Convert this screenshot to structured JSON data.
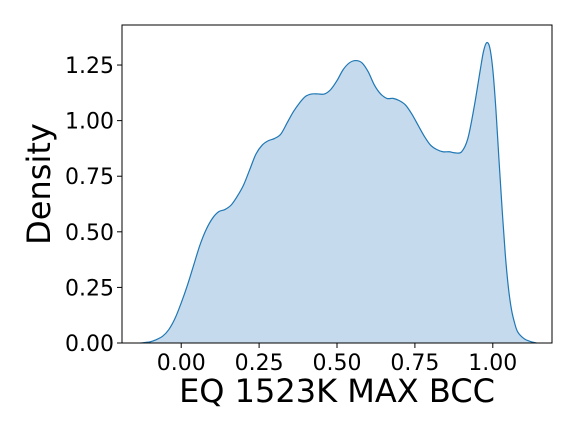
{
  "chart_data": {
    "type": "area",
    "title": "",
    "xlabel": "EQ 1523K MAX BCC",
    "ylabel": "Density",
    "xlim": [
      -0.19,
      1.19
    ],
    "ylim": [
      0,
      1.43
    ],
    "xticks": [
      0.0,
      0.25,
      0.5,
      0.75,
      1.0
    ],
    "xtick_labels": [
      "0.00",
      "0.25",
      "0.50",
      "0.75",
      "1.00"
    ],
    "yticks": [
      0.0,
      0.25,
      0.5,
      0.75,
      1.0,
      1.25
    ],
    "ytick_labels": [
      "0.00",
      "0.25",
      "0.50",
      "0.75",
      "1.00",
      "1.25"
    ],
    "grid": false,
    "legend": "none",
    "colors": {
      "line": "#1f77b4",
      "fill": "#c5daed"
    },
    "series": [
      {
        "x": [
          -0.13,
          -0.1,
          -0.08,
          -0.06,
          -0.04,
          -0.02,
          0.0,
          0.02,
          0.04,
          0.06,
          0.08,
          0.1,
          0.12,
          0.14,
          0.16,
          0.18,
          0.2,
          0.22,
          0.24,
          0.26,
          0.28,
          0.3,
          0.32,
          0.34,
          0.36,
          0.38,
          0.4,
          0.42,
          0.44,
          0.46,
          0.48,
          0.5,
          0.52,
          0.54,
          0.56,
          0.58,
          0.6,
          0.62,
          0.64,
          0.66,
          0.68,
          0.7,
          0.72,
          0.74,
          0.76,
          0.78,
          0.8,
          0.82,
          0.84,
          0.86,
          0.88,
          0.9,
          0.92,
          0.94,
          0.96,
          0.97,
          0.98,
          0.99,
          1.0,
          1.01,
          1.02,
          1.03,
          1.04,
          1.05,
          1.06,
          1.07,
          1.08,
          1.1,
          1.12,
          1.14
        ],
        "y": [
          0.0,
          0.005,
          0.015,
          0.03,
          0.06,
          0.11,
          0.18,
          0.26,
          0.35,
          0.44,
          0.51,
          0.56,
          0.59,
          0.6,
          0.62,
          0.66,
          0.71,
          0.78,
          0.85,
          0.89,
          0.91,
          0.92,
          0.94,
          0.99,
          1.04,
          1.08,
          1.11,
          1.12,
          1.12,
          1.12,
          1.14,
          1.18,
          1.23,
          1.26,
          1.27,
          1.26,
          1.22,
          1.16,
          1.12,
          1.1,
          1.1,
          1.09,
          1.07,
          1.03,
          0.98,
          0.93,
          0.89,
          0.87,
          0.86,
          0.86,
          0.855,
          0.86,
          0.92,
          1.06,
          1.23,
          1.31,
          1.35,
          1.33,
          1.23,
          1.05,
          0.82,
          0.6,
          0.4,
          0.25,
          0.15,
          0.09,
          0.05,
          0.02,
          0.007,
          0.0
        ]
      }
    ]
  }
}
